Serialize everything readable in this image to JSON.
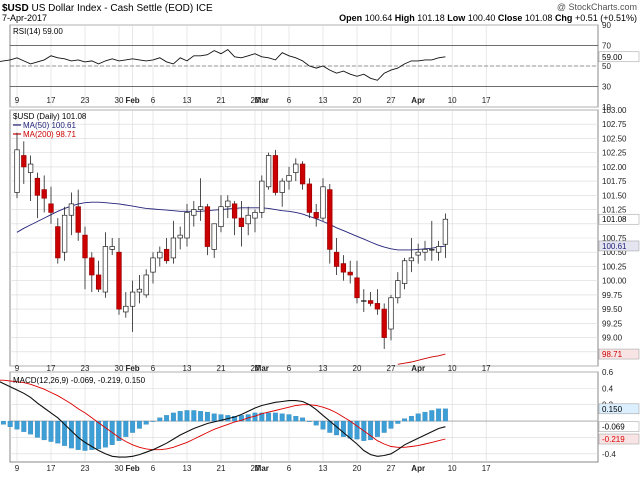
{
  "header": {
    "symbol": "$USD",
    "name": "US Dollar Index - Cash Settle (EOD)",
    "exchange": "ICE",
    "date": "7-Apr-2017",
    "watermark": "@ StockCharts.com",
    "open_label": "Open",
    "open": "100.64",
    "high_label": "High",
    "high": "101.18",
    "low_label": "Low",
    "low": "100.40",
    "close_label": "Close",
    "close": "101.08",
    "chg_label": "Chg",
    "chg": "+0.51 (+0.51%)"
  },
  "colors": {
    "up_candle": "#ffffff",
    "down_candle": "#cc0000",
    "ma50": "#23237a",
    "ma200": "#cc0000",
    "rsi_line": "#111111",
    "macd_line": "#111111",
    "signal_line": "#dd0000",
    "histogram": "#3d9fd6",
    "grid": "#d9d9d9"
  },
  "chart_data": [
    {
      "type": "line",
      "panel": "rsi",
      "legend": "RSI(14) 59.00",
      "current_label": "59.00",
      "y_ticks": [
        10,
        30,
        50,
        70,
        90
      ],
      "ylim": [
        10,
        90
      ],
      "reference_lines": [
        30,
        70
      ],
      "series": [
        {
          "values": [
            63,
            57,
            56,
            59,
            55,
            54,
            52,
            56,
            50,
            54,
            56,
            53,
            55,
            59,
            56,
            57,
            54,
            51,
            54,
            55,
            56,
            58,
            55,
            52,
            54,
            56,
            60,
            58,
            57,
            55,
            56,
            54,
            55,
            52,
            55,
            57,
            55,
            56,
            57,
            56,
            55,
            56,
            58,
            54,
            52,
            58,
            55,
            60,
            60,
            61,
            65,
            62,
            66,
            59,
            58,
            60,
            62,
            59,
            58,
            56,
            63,
            60,
            58,
            55,
            50,
            48,
            50,
            46,
            43,
            45,
            42,
            40,
            42,
            38,
            36,
            43,
            46,
            48,
            52,
            55,
            55,
            56,
            56,
            58,
            59
          ]
        }
      ]
    },
    {
      "type": "candlestick",
      "panel": "price",
      "legend": [
        "$USD (Daily) 101.08",
        "MA(50) 100.61",
        "MA(200) 98.71"
      ],
      "x_tick_labels": [
        "9",
        "17",
        "23",
        "30",
        "Feb",
        "6",
        "13",
        "21",
        "27",
        "Mar",
        "6",
        "13",
        "20",
        "27",
        "Apr",
        "10",
        "17"
      ],
      "y_ticks": [
        98.5,
        98.75,
        99.0,
        99.25,
        99.5,
        99.75,
        100.0,
        100.25,
        100.5,
        100.75,
        101.0,
        101.25,
        101.5,
        101.75,
        102.0,
        102.25,
        102.5,
        102.75,
        103.0
      ],
      "y_tick_labels": [
        "",
        "",
        "99.00",
        "99.25",
        "99.50",
        "99.75",
        "100.00",
        "100.25",
        "100.50",
        "100.75",
        "",
        "101.25",
        "101.50",
        "101.75",
        "102.00",
        "102.25",
        "102.50",
        "102.75",
        "103.00"
      ],
      "ylim": [
        98.5,
        103.0
      ],
      "value_tags": [
        "101.08",
        "100.61",
        "98.71"
      ],
      "candles": [
        {
          "d": "9",
          "o": 101.55,
          "h": 102.6,
          "l": 101.45,
          "c": 102.3
        },
        {
          "d": "10",
          "o": 102.2,
          "h": 102.45,
          "l": 101.7,
          "c": 102.0
        },
        {
          "d": "11",
          "o": 101.9,
          "h": 102.2,
          "l": 101.4,
          "c": 102.05
        },
        {
          "d": "12",
          "o": 101.8,
          "h": 101.9,
          "l": 101.1,
          "c": 101.5
        },
        {
          "d": "13",
          "o": 101.6,
          "h": 101.85,
          "l": 101.2,
          "c": 101.45
        },
        {
          "d": "16",
          "o": 101.35,
          "h": 101.65,
          "l": 101.0,
          "c": 101.2
        },
        {
          "d": "17",
          "o": 100.95,
          "h": 101.1,
          "l": 100.3,
          "c": 100.4
        },
        {
          "d": "18",
          "o": 100.5,
          "h": 101.3,
          "l": 100.35,
          "c": 101.15
        },
        {
          "d": "19",
          "o": 101.15,
          "h": 101.55,
          "l": 100.8,
          "c": 101.35
        },
        {
          "d": "20",
          "o": 101.3,
          "h": 101.6,
          "l": 100.7,
          "c": 100.85
        },
        {
          "d": "23",
          "o": 100.8,
          "h": 100.95,
          "l": 99.85,
          "c": 100.4
        },
        {
          "d": "24",
          "o": 100.4,
          "h": 100.5,
          "l": 99.8,
          "c": 100.1
        },
        {
          "d": "25",
          "o": 100.1,
          "h": 100.35,
          "l": 99.8,
          "c": 99.85
        },
        {
          "d": "26",
          "o": 99.8,
          "h": 100.85,
          "l": 99.7,
          "c": 100.6
        },
        {
          "d": "27",
          "o": 100.55,
          "h": 100.75,
          "l": 100.45,
          "c": 100.6
        },
        {
          "d": "30",
          "o": 100.5,
          "h": 100.75,
          "l": 99.4,
          "c": 99.5
        },
        {
          "d": "31",
          "o": 99.45,
          "h": 99.8,
          "l": 99.35,
          "c": 99.55
        },
        {
          "d": "Feb 1",
          "o": 99.55,
          "h": 100.0,
          "l": 99.1,
          "c": 99.8
        },
        {
          "d": "2",
          "o": 99.8,
          "h": 100.1,
          "l": 99.6,
          "c": 99.85
        },
        {
          "d": "3",
          "o": 99.75,
          "h": 100.2,
          "l": 99.7,
          "c": 100.1
        },
        {
          "d": "6",
          "o": 100.15,
          "h": 100.5,
          "l": 99.95,
          "c": 100.4
        },
        {
          "d": "7",
          "o": 100.4,
          "h": 100.6,
          "l": 100.25,
          "c": 100.5
        },
        {
          "d": "8",
          "o": 100.55,
          "h": 100.75,
          "l": 100.3,
          "c": 100.35
        },
        {
          "d": "9",
          "o": 100.4,
          "h": 101.05,
          "l": 100.3,
          "c": 100.75
        },
        {
          "d": "10",
          "o": 100.75,
          "h": 100.95,
          "l": 100.55,
          "c": 100.8
        },
        {
          "d": "13",
          "o": 100.75,
          "h": 101.35,
          "l": 100.6,
          "c": 101.2
        },
        {
          "d": "14",
          "o": 101.15,
          "h": 101.4,
          "l": 100.95,
          "c": 101.25
        },
        {
          "d": "15",
          "o": 101.25,
          "h": 101.8,
          "l": 101.05,
          "c": 101.3
        },
        {
          "d": "16",
          "o": 101.3,
          "h": 101.35,
          "l": 100.45,
          "c": 100.6
        },
        {
          "d": "17",
          "o": 100.55,
          "h": 101.0,
          "l": 100.4,
          "c": 101.0
        },
        {
          "d": "21",
          "o": 100.95,
          "h": 101.5,
          "l": 100.85,
          "c": 101.3
        },
        {
          "d": "22",
          "o": 101.3,
          "h": 101.5,
          "l": 101.1,
          "c": 101.4
        },
        {
          "d": "23",
          "o": 101.35,
          "h": 101.4,
          "l": 100.8,
          "c": 101.1
        },
        {
          "d": "24",
          "o": 101.1,
          "h": 101.4,
          "l": 100.6,
          "c": 100.95
        },
        {
          "d": "27",
          "o": 101.0,
          "h": 101.3,
          "l": 100.8,
          "c": 101.15
        },
        {
          "d": "28",
          "o": 101.1,
          "h": 101.25,
          "l": 100.85,
          "c": 101.2
        },
        {
          "d": "Mar 1",
          "o": 101.2,
          "h": 101.85,
          "l": 101.1,
          "c": 101.75
        },
        {
          "d": "2",
          "o": 101.65,
          "h": 102.25,
          "l": 101.6,
          "c": 102.2
        },
        {
          "d": "3",
          "o": 102.2,
          "h": 102.3,
          "l": 101.5,
          "c": 101.55
        },
        {
          "d": "6",
          "o": 101.55,
          "h": 101.8,
          "l": 101.3,
          "c": 101.75
        },
        {
          "d": "7",
          "o": 101.75,
          "h": 102.0,
          "l": 101.6,
          "c": 101.85
        },
        {
          "d": "8",
          "o": 101.9,
          "h": 102.15,
          "l": 101.75,
          "c": 102.05
        },
        {
          "d": "9",
          "o": 102.05,
          "h": 102.1,
          "l": 101.6,
          "c": 101.7
        },
        {
          "d": "10",
          "o": 101.7,
          "h": 101.8,
          "l": 101.1,
          "c": 101.2
        },
        {
          "d": "13",
          "o": 101.2,
          "h": 101.35,
          "l": 100.95,
          "c": 101.1
        },
        {
          "d": "14",
          "o": 101.1,
          "h": 101.8,
          "l": 101.05,
          "c": 101.65
        },
        {
          "d": "15",
          "o": 101.6,
          "h": 101.7,
          "l": 100.3,
          "c": 100.55
        },
        {
          "d": "16",
          "o": 100.5,
          "h": 100.75,
          "l": 100.1,
          "c": 100.25
        },
        {
          "d": "17",
          "o": 100.3,
          "h": 100.45,
          "l": 100.0,
          "c": 100.15
        },
        {
          "d": "20",
          "o": 100.15,
          "h": 100.35,
          "l": 99.95,
          "c": 100.1
        },
        {
          "d": "21",
          "o": 100.05,
          "h": 100.35,
          "l": 99.6,
          "c": 99.7
        },
        {
          "d": "22",
          "o": 99.65,
          "h": 99.85,
          "l": 99.45,
          "c": 99.65
        },
        {
          "d": "23",
          "o": 99.65,
          "h": 99.8,
          "l": 99.55,
          "c": 99.6
        },
        {
          "d": "24",
          "o": 99.6,
          "h": 99.85,
          "l": 99.4,
          "c": 99.5
        },
        {
          "d": "27",
          "o": 99.5,
          "h": 99.6,
          "l": 98.8,
          "c": 99.0
        },
        {
          "d": "28",
          "o": 99.15,
          "h": 99.75,
          "l": 98.95,
          "c": 99.7
        },
        {
          "d": "29",
          "o": 99.7,
          "h": 100.15,
          "l": 99.6,
          "c": 100.0
        },
        {
          "d": "30",
          "o": 99.95,
          "h": 100.4,
          "l": 99.85,
          "c": 100.35
        },
        {
          "d": "31",
          "o": 100.35,
          "h": 100.75,
          "l": 100.15,
          "c": 100.4
        },
        {
          "d": "Apr 3",
          "o": 100.45,
          "h": 100.65,
          "l": 100.3,
          "c": 100.5
        },
        {
          "d": "4",
          "o": 100.5,
          "h": 100.7,
          "l": 100.35,
          "c": 100.55
        },
        {
          "d": "5",
          "o": 100.55,
          "h": 101.05,
          "l": 100.35,
          "c": 100.55
        },
        {
          "d": "6",
          "o": 100.5,
          "h": 100.7,
          "l": 100.35,
          "c": 100.6
        },
        {
          "d": "7",
          "o": 100.64,
          "h": 101.18,
          "l": 100.4,
          "c": 101.08
        }
      ],
      "ma50": [
        100.85,
        100.92,
        100.98,
        101.04,
        101.1,
        101.16,
        101.22,
        101.27,
        101.31,
        101.35,
        101.37,
        101.38,
        101.38,
        101.37,
        101.36,
        101.35,
        101.33,
        101.31,
        101.29,
        101.27,
        101.26,
        101.25,
        101.24,
        101.23,
        101.22,
        101.22,
        101.22,
        101.22,
        101.23,
        101.24,
        101.25,
        101.26,
        101.27,
        101.28,
        101.28,
        101.28,
        101.28,
        101.27,
        101.25,
        101.23,
        101.22,
        101.2,
        101.17,
        101.13,
        101.09,
        101.04,
        100.99,
        100.93,
        100.88,
        100.83,
        100.78,
        100.73,
        100.68,
        100.63,
        100.59,
        100.56,
        100.54,
        100.54,
        100.54,
        100.55,
        100.56,
        100.57,
        100.59,
        100.61
      ],
      "ma200": [
        98.53,
        98.55,
        98.57,
        98.6,
        98.63,
        98.66,
        98.68,
        98.71
      ]
    },
    {
      "type": "line",
      "panel": "macd",
      "legend": "MACD(12,26,9) -0.069, -0.219, 0.150",
      "y_ticks": [
        0.6,
        0.4,
        0.2,
        0.0,
        -0.2,
        -0.4
      ],
      "y_tick_labels": [
        "0.6",
        "0.4",
        "0.2",
        "",
        "",
        "-0.4"
      ],
      "ylim": [
        -0.5,
        0.6
      ],
      "value_tags": [
        "0.150",
        "-0.069",
        "-0.219"
      ],
      "series": [
        {
          "name": "MACD",
          "values": [
            0.5,
            0.46,
            0.42,
            0.38,
            0.34,
            0.29,
            0.22,
            0.16,
            0.1,
            0.04,
            -0.04,
            -0.12,
            -0.2,
            -0.26,
            -0.31,
            -0.36,
            -0.4,
            -0.43,
            -0.44,
            -0.44,
            -0.43,
            -0.41,
            -0.38,
            -0.35,
            -0.31,
            -0.27,
            -0.22,
            -0.17,
            -0.13,
            -0.09,
            -0.06,
            -0.03,
            -0.01,
            0.01,
            0.03,
            0.05,
            0.08,
            0.12,
            0.16,
            0.19,
            0.21,
            0.23,
            0.24,
            0.25,
            0.25,
            0.24,
            0.2,
            0.14,
            0.07,
            0.0,
            -0.07,
            -0.14,
            -0.21,
            -0.28,
            -0.36,
            -0.41,
            -0.43,
            -0.42,
            -0.4,
            -0.35,
            -0.29,
            -0.25,
            -0.21,
            -0.17,
            -0.13,
            -0.09,
            -0.069
          ]
        },
        {
          "name": "Signal",
          "values": [
            0.5,
            0.5,
            0.49,
            0.48,
            0.47,
            0.45,
            0.42,
            0.39,
            0.35,
            0.31,
            0.26,
            0.21,
            0.15,
            0.1,
            0.04,
            -0.02,
            -0.08,
            -0.14,
            -0.2,
            -0.25,
            -0.29,
            -0.32,
            -0.34,
            -0.35,
            -0.35,
            -0.34,
            -0.32,
            -0.29,
            -0.26,
            -0.22,
            -0.18,
            -0.14,
            -0.1,
            -0.07,
            -0.04,
            -0.01,
            0.01,
            0.04,
            0.06,
            0.09,
            0.11,
            0.13,
            0.15,
            0.17,
            0.19,
            0.2,
            0.2,
            0.19,
            0.17,
            0.14,
            0.1,
            0.05,
            0.0,
            -0.06,
            -0.12,
            -0.18,
            -0.24,
            -0.28,
            -0.31,
            -0.32,
            -0.32,
            -0.31,
            -0.3,
            -0.28,
            -0.26,
            -0.24,
            -0.219
          ]
        },
        {
          "name": "Histogram",
          "values": [
            0.0,
            -0.04,
            -0.07,
            -0.1,
            -0.13,
            -0.16,
            -0.2,
            -0.23,
            -0.25,
            -0.27,
            -0.3,
            -0.33,
            -0.35,
            -0.36,
            -0.35,
            -0.34,
            -0.32,
            -0.29,
            -0.24,
            -0.19,
            -0.14,
            -0.09,
            -0.04,
            0.0,
            0.04,
            0.07,
            0.1,
            0.12,
            0.13,
            0.13,
            0.12,
            0.11,
            0.09,
            0.08,
            0.07,
            0.06,
            0.07,
            0.08,
            0.1,
            0.1,
            0.1,
            0.1,
            0.09,
            0.08,
            0.06,
            0.04,
            0.0,
            -0.05,
            -0.1,
            -0.14,
            -0.17,
            -0.19,
            -0.21,
            -0.22,
            -0.24,
            -0.23,
            -0.19,
            -0.14,
            -0.09,
            -0.03,
            0.03,
            0.06,
            0.09,
            0.11,
            0.13,
            0.15,
            0.15
          ]
        }
      ]
    }
  ]
}
